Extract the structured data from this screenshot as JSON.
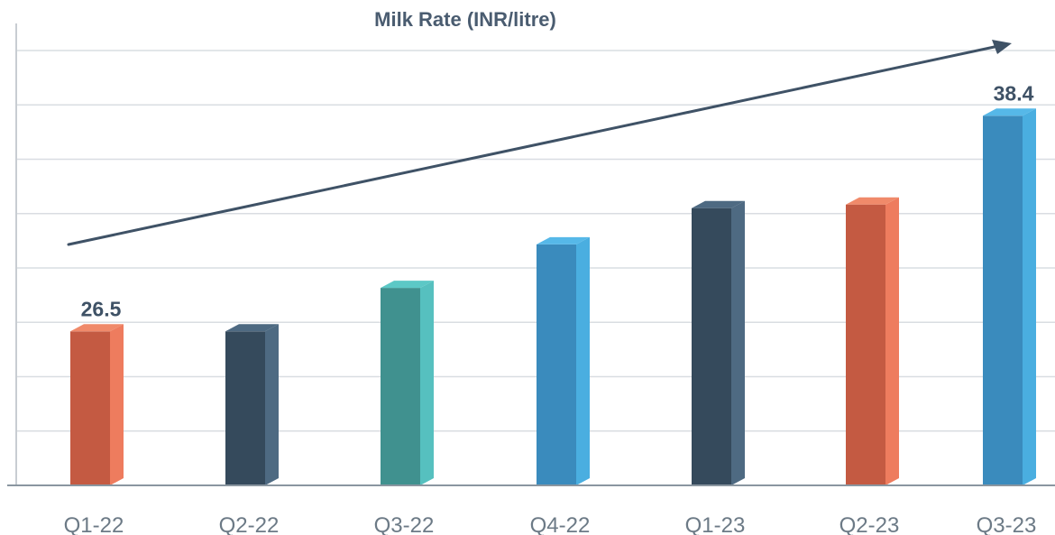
{
  "chart_data": {
    "type": "bar",
    "title": "Milk Rate (INR/litre)",
    "xlabel": "",
    "ylabel": "",
    "categories": [
      "Q1-22",
      "Q2-22",
      "Q3-22",
      "Q4-22",
      "Q1-23",
      "Q2-23",
      "Q3-23"
    ],
    "values": [
      26.5,
      26.5,
      28.9,
      31.3,
      33.3,
      33.5,
      38.4
    ],
    "data_labels": [
      "26.5",
      "",
      "",
      "",
      "",
      "",
      "38.4"
    ],
    "ylim": [
      18,
      42
    ],
    "yticks_count": 8,
    "grid": true,
    "legend": "none",
    "trend_arrow": true,
    "style": "3d-bar",
    "colors": [
      {
        "front": "#c45a42",
        "side": "#ee7c5e",
        "top": "#f08a6a"
      },
      {
        "front": "#354a5c",
        "side": "#4e6a82",
        "top": "#4e6a82"
      },
      {
        "front": "#40918f",
        "side": "#56c0bf",
        "top": "#5cc8c6"
      },
      {
        "front": "#3a8bbd",
        "side": "#4aaee0",
        "top": "#56b8e8"
      },
      {
        "front": "#354a5c",
        "side": "#4e6a82",
        "top": "#4e6a82"
      },
      {
        "front": "#c45a42",
        "side": "#ee7c5e",
        "top": "#f08a6a"
      },
      {
        "front": "#3a8bbd",
        "side": "#4aaee0",
        "top": "#56b8e8"
      }
    ],
    "grid_color": "#d9dde2",
    "axis_color": "#8a96a0",
    "arrow_color": "#3f5266"
  }
}
